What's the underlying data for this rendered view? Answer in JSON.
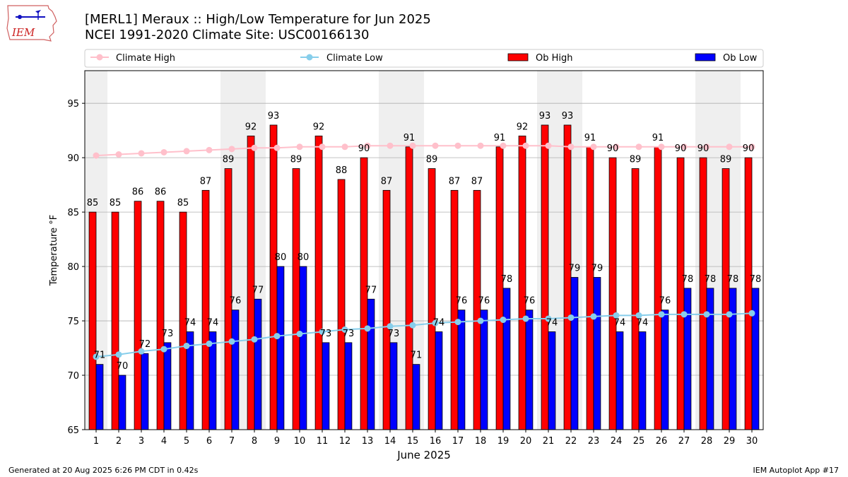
{
  "header": {
    "logo_text": "IEM",
    "title_line1": "[MERL1] Meraux :: High/Low Temperature for Jun 2025",
    "title_line2": "NCEI 1991-2020 Climate Site: USC00166130"
  },
  "footer": {
    "generated": "Generated at 20 Aug 2025 6:26 PM CDT in 0.42s",
    "app": "IEM Autoplot App #17"
  },
  "colors": {
    "ob_high": "#ff0000",
    "ob_low": "#0000ff",
    "climate_high": "#ffc0cb",
    "climate_low": "#87ceeb",
    "weekend_shade": "#efefef",
    "grid": "#b0b0b0"
  },
  "chart_data": {
    "type": "bar",
    "xlabel": "June 2025",
    "ylabel": "Temperature °F",
    "ylim": [
      65,
      98
    ],
    "yticks": [
      65,
      70,
      75,
      80,
      85,
      90,
      95
    ],
    "grid": "horizontal",
    "legend_position": "top",
    "categories": [
      "1",
      "2",
      "3",
      "4",
      "5",
      "6",
      "7",
      "8",
      "9",
      "10",
      "11",
      "12",
      "13",
      "14",
      "15",
      "16",
      "17",
      "18",
      "19",
      "20",
      "21",
      "22",
      "23",
      "24",
      "25",
      "26",
      "27",
      "28",
      "29",
      "30"
    ],
    "shaded_days": [
      1,
      7,
      8,
      14,
      15,
      21,
      22,
      28,
      29
    ],
    "series": [
      {
        "name": "Climate High",
        "kind": "line",
        "values": [
          90.2,
          90.3,
          90.4,
          90.5,
          90.6,
          90.7,
          90.8,
          90.9,
          90.9,
          91.0,
          91.0,
          91.0,
          91.1,
          91.1,
          91.1,
          91.1,
          91.1,
          91.1,
          91.1,
          91.1,
          91.1,
          91.0,
          91.0,
          91.0,
          91.0,
          91.0,
          91.0,
          91.0,
          91.0,
          91.0
        ]
      },
      {
        "name": "Climate Low",
        "kind": "line",
        "values": [
          71.7,
          71.9,
          72.2,
          72.4,
          72.7,
          72.9,
          73.1,
          73.3,
          73.6,
          73.8,
          74.0,
          74.2,
          74.3,
          74.5,
          74.6,
          74.8,
          74.9,
          75.0,
          75.1,
          75.2,
          75.2,
          75.3,
          75.4,
          75.5,
          75.5,
          75.6,
          75.6,
          75.6,
          75.6,
          75.7
        ]
      },
      {
        "name": "Ob High",
        "kind": "bar",
        "values": [
          85,
          85,
          86,
          86,
          85,
          87,
          89,
          92,
          93,
          89,
          92,
          88,
          90,
          87,
          91,
          89,
          87,
          87,
          91,
          92,
          93,
          93,
          91,
          90,
          89,
          91,
          90,
          90,
          89,
          90
        ]
      },
      {
        "name": "Ob Low",
        "kind": "bar",
        "values": [
          71,
          70,
          72,
          73,
          74,
          74,
          76,
          77,
          80,
          80,
          73,
          73,
          77,
          73,
          71,
          74,
          76,
          76,
          78,
          76,
          74,
          79,
          79,
          74,
          74,
          76,
          78,
          78,
          78,
          78
        ]
      }
    ]
  }
}
